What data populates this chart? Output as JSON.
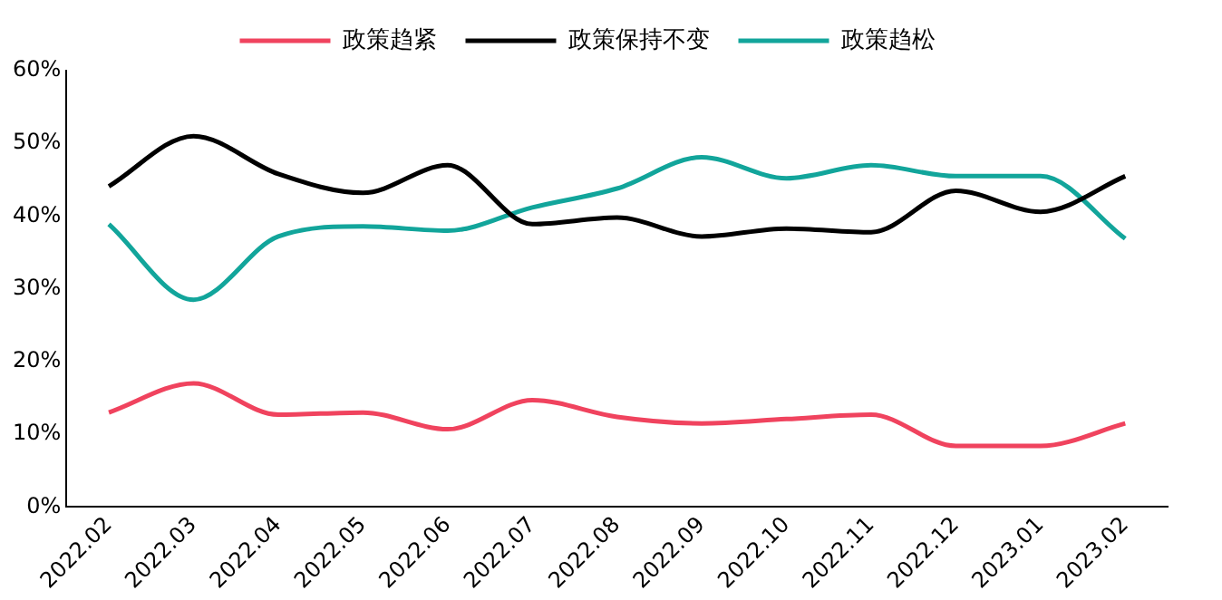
{
  "chart_data": {
    "type": "line",
    "categories": [
      "2022.02",
      "2022.03",
      "2022.04",
      "2022.05",
      "2022.06",
      "2022.07",
      "2022.08",
      "2022.09",
      "2022.10",
      "2022.11",
      "2022.12",
      "2023.01",
      "2023.02"
    ],
    "series": [
      {
        "name": "政策趋紧",
        "color": "#f0435e",
        "values": [
          13.0,
          17.0,
          12.7,
          13.0,
          10.7,
          14.7,
          12.4,
          11.5,
          12.1,
          12.7,
          8.4,
          8.4,
          11.5
        ]
      },
      {
        "name": "政策保持不变",
        "color": "#000000",
        "values": [
          44.1,
          51.0,
          45.8,
          43.2,
          47.0,
          38.9,
          39.8,
          37.2,
          38.3,
          37.8,
          43.5,
          40.6,
          45.5
        ]
      },
      {
        "name": "政策趋松",
        "color": "#12a59b",
        "values": [
          38.9,
          28.5,
          37.2,
          38.6,
          38.0,
          41.2,
          43.8,
          48.1,
          45.2,
          47.0,
          45.5,
          45.5,
          36.9
        ]
      }
    ],
    "ylim": [
      0,
      60
    ],
    "yticks": [
      {
        "value": 0,
        "label": "0%"
      },
      {
        "value": 10,
        "label": "10%"
      },
      {
        "value": 20,
        "label": "20%"
      },
      {
        "value": 30,
        "label": "30%"
      },
      {
        "value": 40,
        "label": "40%"
      },
      {
        "value": 50,
        "label": "50%"
      },
      {
        "value": 60,
        "label": "60%"
      }
    ],
    "grid": false,
    "legend": "top",
    "marker": "none",
    "line_style": "solid"
  }
}
